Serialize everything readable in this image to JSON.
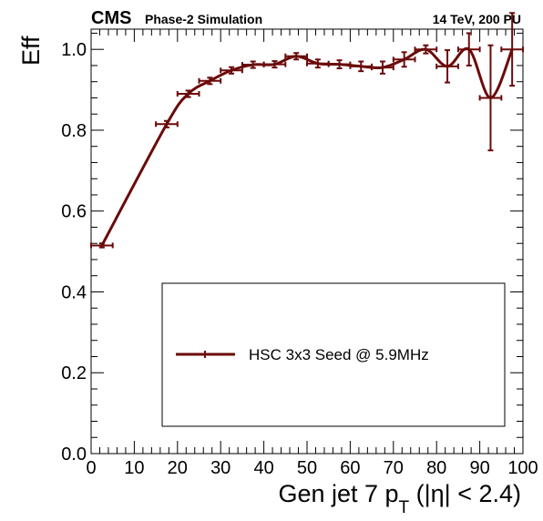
{
  "header": {
    "experiment": "CMS",
    "status": "Phase-2 Simulation",
    "conditions": "14 TeV, 200 PU"
  },
  "chart_data": {
    "type": "line",
    "title": "",
    "xlabel": "Gen jet 7 p",
    "xlabel_sub": "T",
    "xlabel_suffix": " (|η| < 2.4)",
    "ylabel": "Eff",
    "xlim": [
      0,
      100
    ],
    "ylim": [
      0,
      1.05
    ],
    "x_ticks": [
      "0",
      "10",
      "20",
      "30",
      "40",
      "50",
      "60",
      "70",
      "80",
      "90",
      "100"
    ],
    "y_ticks": [
      "0.0",
      "0.2",
      "0.4",
      "0.6",
      "0.8",
      "1.0"
    ],
    "grid": false,
    "legend_position": "lower-center",
    "colors": {
      "series": "#6b0a0a"
    },
    "series": [
      {
        "name": "HSC 3x3 Seed @ 5.9MHz",
        "points": [
          {
            "x": 2.5,
            "xerr": 2.5,
            "y": 0.515,
            "yerr": 0.005
          },
          {
            "x": 17.5,
            "xerr": 2.5,
            "y": 0.815,
            "yerr": 0.008
          },
          {
            "x": 22.5,
            "xerr": 2.5,
            "y": 0.89,
            "yerr": 0.008
          },
          {
            "x": 27.5,
            "xerr": 2.5,
            "y": 0.922,
            "yerr": 0.008
          },
          {
            "x": 32.5,
            "xerr": 2.5,
            "y": 0.948,
            "yerr": 0.008
          },
          {
            "x": 37.5,
            "xerr": 2.5,
            "y": 0.962,
            "yerr": 0.008
          },
          {
            "x": 42.5,
            "xerr": 2.5,
            "y": 0.963,
            "yerr": 0.008
          },
          {
            "x": 47.5,
            "xerr": 2.5,
            "y": 0.983,
            "yerr": 0.008
          },
          {
            "x": 52.5,
            "xerr": 2.5,
            "y": 0.965,
            "yerr": 0.01
          },
          {
            "x": 57.5,
            "xerr": 2.5,
            "y": 0.963,
            "yerr": 0.01
          },
          {
            "x": 62.5,
            "xerr": 2.5,
            "y": 0.958,
            "yerr": 0.012
          },
          {
            "x": 67.5,
            "xerr": 2.5,
            "y": 0.955,
            "yerr": 0.015
          },
          {
            "x": 72.5,
            "xerr": 2.5,
            "y": 0.975,
            "yerr": 0.018
          },
          {
            "x": 77.5,
            "xerr": 2.5,
            "y": 1.0,
            "yerr": 0.01
          },
          {
            "x": 82.5,
            "xerr": 2.5,
            "y": 0.958,
            "yerr": 0.04
          },
          {
            "x": 87.5,
            "xerr": 2.5,
            "y": 1.0,
            "yerr": 0.04
          },
          {
            "x": 92.5,
            "xerr": 2.5,
            "y": 0.88,
            "yerr": 0.13
          },
          {
            "x": 97.5,
            "xerr": 2.5,
            "y": 1.0,
            "yerr": 0.09
          }
        ]
      }
    ]
  }
}
